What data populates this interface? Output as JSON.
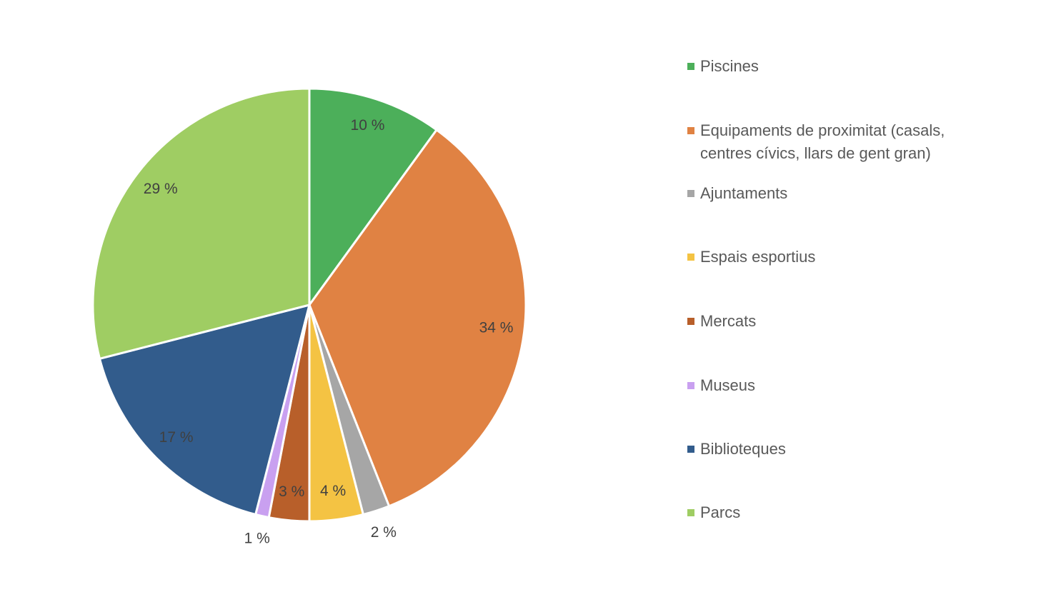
{
  "chart_data": {
    "type": "pie",
    "categories": [
      "Piscines",
      "Equipaments de proximitat (casals, centres cívics, llars de gent gran)",
      "Ajuntaments",
      "Espais esportius",
      "Mercats",
      "Museus",
      "Biblioteques",
      "Parcs"
    ],
    "values": [
      10,
      34,
      2,
      4,
      3,
      1,
      17,
      29
    ],
    "value_labels": [
      "10 %",
      "34 %",
      "2 %",
      "4 %",
      "3 %",
      "1 %",
      "17 %",
      "29 %"
    ],
    "colors": [
      "#4caf5a",
      "#e08243",
      "#a6a6a6",
      "#f4c343",
      "#b85f2a",
      "#c9a0f0",
      "#325c8c",
      "#9fcd63"
    ],
    "legend": "right"
  }
}
